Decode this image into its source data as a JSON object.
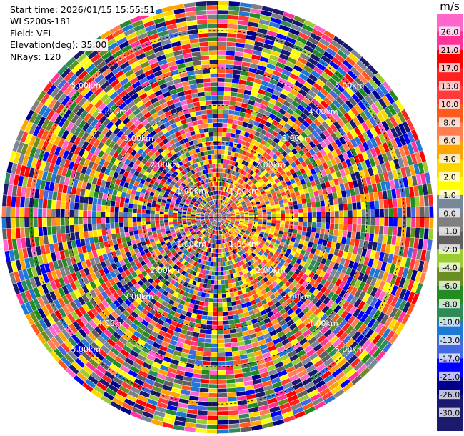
{
  "info": {
    "start_time": "Start time: 2026/01/15 15:55:51",
    "instrument": "WLS200s-181",
    "field": "Field: VEL",
    "elevation": "Elevation(deg): 35.00",
    "nrays": "NRays: 120"
  },
  "chart_data": {
    "type": "heatmap",
    "projection": "polar PPI",
    "field": "VEL",
    "elevation_deg": 35.0,
    "n_rays": 120,
    "range_ring_labels": [
      "1.00km",
      "2.00km",
      "3.00km",
      "4.00km",
      "5.00km"
    ],
    "range_rings_km": [
      1,
      2,
      3,
      4,
      5
    ],
    "max_range_km": 5.8,
    "colorbar": {
      "unit": "m/s",
      "tick_labels": [
        "26.0",
        "21.0",
        "17.0",
        "13.0",
        "10.0",
        "8.0",
        "6.0",
        "4.0",
        "2.0",
        "1.0",
        "0.0",
        "-1.0",
        "-2.0",
        "-4.0",
        "-6.0",
        "-8.0",
        "-10.0",
        "-13.0",
        "-17.0",
        "-21.0",
        "-26.0",
        "-30.0"
      ],
      "colors": [
        "#ff66cc",
        "#ff3399",
        "#ff0000",
        "#ff2020",
        "#ff3b3b",
        "#ff5a1e",
        "#ff7f50",
        "#ffa500",
        "#ffd700",
        "#ffff00",
        "#778899",
        "#808080",
        "#606060",
        "#9acd32",
        "#6b8e23",
        "#228b22",
        "#2e8b57",
        "#1e78d6",
        "#4169e1",
        "#0000ff",
        "#00008b",
        "#191970",
        "#1a1a6e"
      ]
    }
  }
}
